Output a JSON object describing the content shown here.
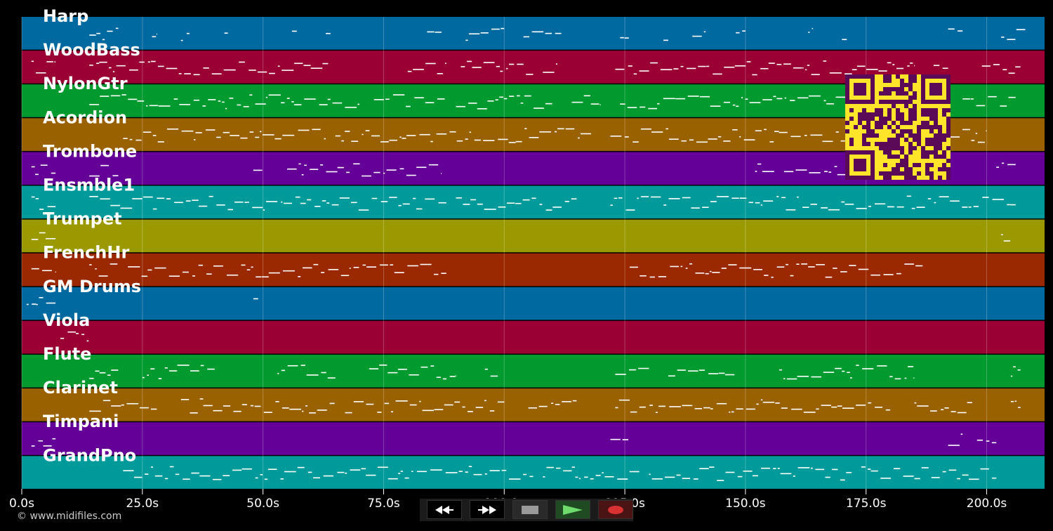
{
  "colors": {
    "background": "#000000",
    "track_palette": [
      "#0069a0",
      "#9a0034",
      "#009a2f",
      "#9a6100",
      "#640098",
      "#009a9a",
      "#9a9a00",
      "#9a2800"
    ],
    "note": "#ffffff",
    "qr_fg": "#5b0a57",
    "qr_bg": "#ffe52a"
  },
  "tracks": [
    {
      "name": "Harp",
      "color_index": 0
    },
    {
      "name": "WoodBass",
      "color_index": 1
    },
    {
      "name": "NylonGtr",
      "color_index": 2
    },
    {
      "name": "Acordion",
      "color_index": 3
    },
    {
      "name": "Trombone",
      "color_index": 4
    },
    {
      "name": "Ensmble1",
      "color_index": 5
    },
    {
      "name": "Trumpet",
      "color_index": 6
    },
    {
      "name": "FrenchHr",
      "color_index": 7
    },
    {
      "name": "GM Drums",
      "color_index": 0
    },
    {
      "name": "Viola",
      "color_index": 1
    },
    {
      "name": "Flute",
      "color_index": 2
    },
    {
      "name": "Clarinet",
      "color_index": 3
    },
    {
      "name": "Timpani",
      "color_index": 4
    },
    {
      "name": "GrandPno",
      "color_index": 5
    }
  ],
  "time_axis": {
    "ticks": [
      "0.0s",
      "25.0s",
      "50.0s",
      "75.0s",
      "100.0s",
      "125.0s",
      "150.0s",
      "175.0s",
      "200.0s"
    ],
    "tick_values": [
      0,
      25,
      50,
      75,
      100,
      125,
      150,
      175,
      200
    ],
    "max_seconds": 212
  },
  "note_segments": [
    {
      "track": 0,
      "spans": [
        [
          14,
          20
        ],
        [
          27,
          28
        ],
        [
          33,
          35
        ],
        [
          42,
          43
        ],
        [
          56,
          57
        ],
        [
          63,
          64
        ],
        [
          84,
          87
        ],
        [
          92,
          100
        ],
        [
          104,
          112
        ],
        [
          124,
          126
        ],
        [
          133,
          134
        ],
        [
          139,
          142
        ],
        [
          148,
          150
        ],
        [
          163,
          164
        ],
        [
          170,
          171
        ],
        [
          192,
          195
        ],
        [
          203,
          208
        ]
      ]
    },
    {
      "track": 1,
      "spans": [
        [
          2,
          7
        ],
        [
          14,
          64
        ],
        [
          80,
          88
        ],
        [
          91,
          106
        ],
        [
          108,
          111
        ],
        [
          123,
          185
        ],
        [
          189,
          192
        ],
        [
          199,
          207
        ]
      ]
    },
    {
      "track": 2,
      "spans": [
        [
          14,
          70
        ],
        [
          73,
          88
        ],
        [
          90,
          110
        ],
        [
          114,
          120
        ],
        [
          124,
          185
        ],
        [
          195,
          206
        ]
      ]
    },
    {
      "track": 3,
      "spans": [
        [
          21,
          63
        ],
        [
          65,
          118
        ],
        [
          122,
          185
        ],
        [
          190,
          200
        ]
      ]
    },
    {
      "track": 4,
      "spans": [
        [
          2,
          7
        ],
        [
          14,
          20
        ],
        [
          48,
          50
        ],
        [
          55,
          87
        ],
        [
          152,
          156
        ],
        [
          158,
          185
        ],
        [
          202,
          206
        ]
      ]
    },
    {
      "track": 5,
      "spans": [
        [
          2,
          7
        ],
        [
          14,
          88
        ],
        [
          90,
          115
        ],
        [
          122,
          206
        ]
      ]
    },
    {
      "track": 6,
      "spans": [
        [
          2,
          7
        ],
        [
          203,
          205
        ]
      ]
    },
    {
      "track": 7,
      "spans": [
        [
          2,
          7
        ],
        [
          14,
          20
        ],
        [
          22,
          88
        ],
        [
          126,
          187
        ]
      ]
    },
    {
      "track": 8,
      "spans": [
        [
          1,
          3
        ],
        [
          3,
          7
        ],
        [
          48,
          49
        ]
      ]
    },
    {
      "track": 9,
      "spans": [
        [
          8,
          14
        ]
      ]
    },
    {
      "track": 10,
      "spans": [
        [
          14,
          20
        ],
        [
          25,
          40
        ],
        [
          53,
          65
        ],
        [
          72,
          90
        ],
        [
          96,
          99
        ],
        [
          123,
          130
        ],
        [
          134,
          148
        ],
        [
          157,
          185
        ],
        [
          205,
          207
        ]
      ]
    },
    {
      "track": 11,
      "spans": [
        [
          14,
          28
        ],
        [
          33,
          65
        ],
        [
          67,
          100
        ],
        [
          105,
          115
        ],
        [
          123,
          180
        ],
        [
          185,
          197
        ],
        [
          205,
          207
        ]
      ]
    },
    {
      "track": 12,
      "spans": [
        [
          2,
          7
        ],
        [
          122,
          126
        ],
        [
          192,
          195
        ],
        [
          198,
          202
        ]
      ]
    },
    {
      "track": 13,
      "spans": [
        [
          21,
          106
        ],
        [
          108,
          128
        ],
        [
          130,
          172
        ],
        [
          174,
          202
        ]
      ]
    }
  ],
  "transport": {
    "buttons": [
      {
        "name": "rewind-button",
        "icon": "rewind-icon"
      },
      {
        "name": "fast-forward-button",
        "icon": "fast-forward-icon"
      },
      {
        "name": "stop-button",
        "icon": "stop-icon"
      },
      {
        "name": "play-button",
        "icon": "play-icon"
      },
      {
        "name": "record-button",
        "icon": "record-icon"
      }
    ]
  },
  "copyright": "© www.midifiles.com"
}
